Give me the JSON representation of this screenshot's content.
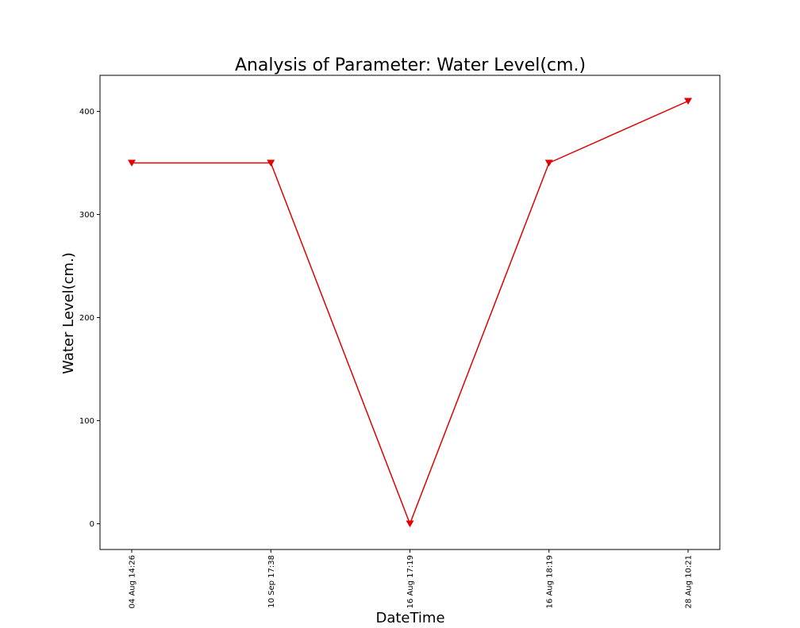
{
  "chart_data": {
    "type": "line",
    "title": "Analysis of Parameter: Water Level(cm.)",
    "xlabel": "DateTime",
    "ylabel": "Water Level(cm.)",
    "categories": [
      "04 Aug 14:26",
      "10 Sep 17:38",
      "16 Aug 17:19",
      "16 Aug 18:19",
      "28 Aug 10:21"
    ],
    "series": [
      {
        "values": [
          350,
          350,
          0,
          350,
          410
        ],
        "color": "#e00000",
        "marker": "triangle-down"
      }
    ],
    "ylim": [
      -25,
      435
    ],
    "yticks": [
      0,
      100,
      200,
      300,
      400
    ],
    "grid": false
  }
}
